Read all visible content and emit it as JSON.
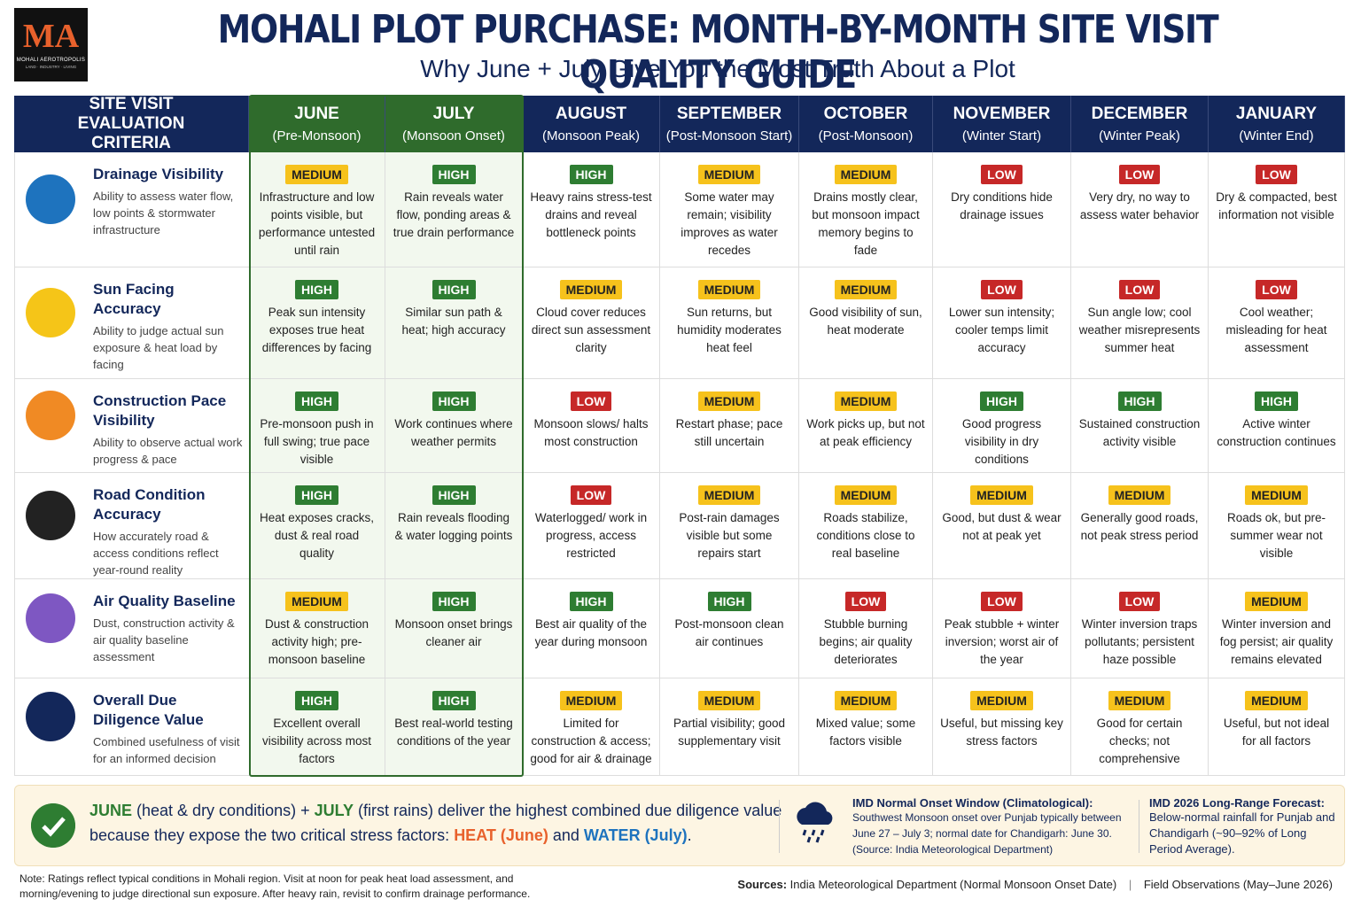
{
  "logo": {
    "mark": "MA",
    "name": "MOHALI AEROTROPOLIS",
    "tagline": "LAND · INDUSTRY · LIVING"
  },
  "header": {
    "title": "MOHALI PLOT PURCHASE: MONTH-BY-MONTH SITE VISIT QUALITY GUIDE",
    "subtitle": "Why June + July Give You the Most Truth About a Plot"
  },
  "rating_colors": {
    "HIGH": "#2e7d32",
    "MEDIUM": "#f6c21c",
    "LOW": "#c62828"
  },
  "table": {
    "criteria_header": "SITE VISIT EVALUATION CRITERIA",
    "months": [
      {
        "name": "JUNE",
        "note": "(Pre-Monsoon)"
      },
      {
        "name": "JULY",
        "note": "(Monsoon Onset)"
      },
      {
        "name": "AUGUST",
        "note": "(Monsoon Peak)"
      },
      {
        "name": "SEPTEMBER",
        "note": "(Post-Monsoon Start)"
      },
      {
        "name": "OCTOBER",
        "note": "(Post-Monsoon)"
      },
      {
        "name": "NOVEMBER",
        "note": "(Winter Start)"
      },
      {
        "name": "DECEMBER",
        "note": "(Winter Peak)"
      },
      {
        "name": "JANUARY",
        "note": "(Winter End)"
      }
    ],
    "rows": [
      {
        "title": "Drainage Visibility",
        "description": "Ability to assess water flow, low points & stormwater infrastructure",
        "cells": [
          {
            "rating": "MEDIUM",
            "text": "Infrastructure and low points visible, but performance untested until rain"
          },
          {
            "rating": "HIGH",
            "text": "Rain reveals water flow, ponding areas & true drain performance"
          },
          {
            "rating": "HIGH",
            "text": "Heavy rains stress-test drains and reveal bottleneck points"
          },
          {
            "rating": "MEDIUM",
            "text": "Some water may remain; visibility improves as water recedes"
          },
          {
            "rating": "MEDIUM",
            "text": "Drains mostly clear, but monsoon impact memory begins to fade"
          },
          {
            "rating": "LOW",
            "text": "Dry conditions hide drainage issues"
          },
          {
            "rating": "LOW",
            "text": "Very dry, no way to assess water behavior"
          },
          {
            "rating": "LOW",
            "text": "Dry & compacted, best information not visible"
          }
        ]
      },
      {
        "title": "Sun Facing Accuracy",
        "description": "Ability to judge actual sun exposure & heat load by facing",
        "cells": [
          {
            "rating": "HIGH",
            "text": "Peak sun intensity exposes true heat differences by facing"
          },
          {
            "rating": "HIGH",
            "text": "Similar sun path & heat; high accuracy"
          },
          {
            "rating": "MEDIUM",
            "text": "Cloud cover reduces direct sun assessment clarity"
          },
          {
            "rating": "MEDIUM",
            "text": "Sun returns, but humidity moderates heat feel"
          },
          {
            "rating": "MEDIUM",
            "text": "Good visibility of sun, heat moderate"
          },
          {
            "rating": "LOW",
            "text": "Lower sun intensity; cooler temps limit accuracy"
          },
          {
            "rating": "LOW",
            "text": "Sun angle low; cool weather misrepresents summer heat"
          },
          {
            "rating": "LOW",
            "text": "Cool weather; misleading for heat assessment"
          }
        ]
      },
      {
        "title": "Construction Pace Visibility",
        "description": "Ability to observe actual work progress & pace",
        "cells": [
          {
            "rating": "HIGH",
            "text": "Pre-monsoon push in full swing; true pace visible"
          },
          {
            "rating": "HIGH",
            "text": "Work continues where weather permits"
          },
          {
            "rating": "LOW",
            "text": "Monsoon slows/ halts most construction"
          },
          {
            "rating": "MEDIUM",
            "text": "Restart phase; pace still uncertain"
          },
          {
            "rating": "MEDIUM",
            "text": "Work picks up, but not at peak efficiency"
          },
          {
            "rating": "HIGH",
            "text": "Good progress visibility in dry conditions"
          },
          {
            "rating": "HIGH",
            "text": "Sustained construction activity visible"
          },
          {
            "rating": "HIGH",
            "text": "Active winter construction continues"
          }
        ]
      },
      {
        "title": "Road Condition Accuracy",
        "description": "How accurately road & access conditions reflect year-round reality",
        "cells": [
          {
            "rating": "HIGH",
            "text": "Heat exposes cracks, dust & real road quality"
          },
          {
            "rating": "HIGH",
            "text": "Rain reveals flooding & water logging points"
          },
          {
            "rating": "LOW",
            "text": "Waterlogged/ work in progress, access restricted"
          },
          {
            "rating": "MEDIUM",
            "text": "Post-rain damages visible but some repairs start"
          },
          {
            "rating": "MEDIUM",
            "text": "Roads stabilize, conditions close to real baseline"
          },
          {
            "rating": "MEDIUM",
            "text": "Good, but dust & wear not at peak yet"
          },
          {
            "rating": "MEDIUM",
            "text": "Generally good roads, not peak stress period"
          },
          {
            "rating": "MEDIUM",
            "text": "Roads ok, but pre-summer wear not visible"
          }
        ]
      },
      {
        "title": "Air Quality Baseline",
        "description": "Dust, construction activity & air quality baseline assessment",
        "cells": [
          {
            "rating": "MEDIUM",
            "text": "Dust & construction activity high; pre-monsoon baseline"
          },
          {
            "rating": "HIGH",
            "text": "Monsoon onset brings cleaner air"
          },
          {
            "rating": "HIGH",
            "text": "Best air quality of the year during monsoon"
          },
          {
            "rating": "HIGH",
            "text": "Post-monsoon clean air continues"
          },
          {
            "rating": "LOW",
            "text": "Stubble burning begins; air quality deteriorates"
          },
          {
            "rating": "LOW",
            "text": "Peak stubble + winter inversion; worst air of the year"
          },
          {
            "rating": "LOW",
            "text": "Winter inversion traps pollutants; persistent haze possible"
          },
          {
            "rating": "MEDIUM",
            "text": "Winter inversion and fog persist; air quality remains elevated"
          }
        ]
      },
      {
        "title": "Overall Due Diligence Value",
        "description": "Combined usefulness of visit for an informed decision",
        "cells": [
          {
            "rating": "HIGH",
            "text": "Excellent overall visibility across most factors"
          },
          {
            "rating": "HIGH",
            "text": "Best real-world testing conditions of the year"
          },
          {
            "rating": "MEDIUM",
            "text": "Limited for construction & access; good for air & drainage"
          },
          {
            "rating": "MEDIUM",
            "text": "Partial visibility; good supplementary visit"
          },
          {
            "rating": "MEDIUM",
            "text": "Mixed value; some factors visible"
          },
          {
            "rating": "MEDIUM",
            "text": "Useful, but missing key stress factors"
          },
          {
            "rating": "MEDIUM",
            "text": "Good for certain checks; not comprehensive"
          },
          {
            "rating": "MEDIUM",
            "text": "Useful, but not ideal for all factors"
          }
        ]
      }
    ]
  },
  "summary": {
    "parts": [
      "JUNE",
      " (heat & dry conditions) + ",
      "JULY",
      " (first rains) deliver the highest combined due diligence value because they expose the two critical stress factors: ",
      "HEAT (June)",
      " and ",
      "WATER (July)",
      "."
    ]
  },
  "imd_onset": {
    "title": "IMD Normal Onset Window (Climatological):",
    "text": "Southwest Monsoon onset over Punjab typically between June 27 – July 3; normal date for Chandigarh: June 30. (Source: India Meteorological Department)"
  },
  "imd_forecast": {
    "title": "IMD 2026 Long-Range Forecast:",
    "text": "Below-normal rainfall for Punjab and Chandigarh (~90–92% of Long Period Average)."
  },
  "note": "Note: Ratings reflect typical conditions in Mohali region. Visit at noon for peak heat load assessment, and morning/evening to judge directional sun exposure. After heavy rain, revisit to confirm drainage performance.",
  "sources": {
    "label": "Sources:",
    "items": [
      "India Meteorological Department (Normal Monsoon Onset Date)",
      "Field Observations (May–June 2026)"
    ]
  }
}
